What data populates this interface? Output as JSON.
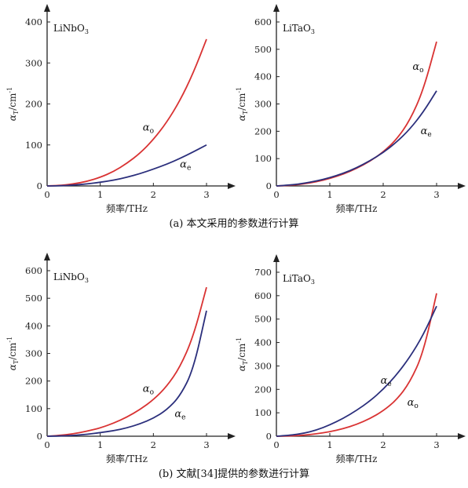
{
  "chart_data": [
    {
      "type": "line",
      "label": "LiNbO3",
      "xlabel": "频率/THz",
      "ylabel": "αT/cm-1",
      "xlim": [
        0,
        3.3
      ],
      "ylim": [
        0,
        420
      ],
      "xticks": [
        0,
        1,
        2,
        3
      ],
      "yticks": [
        0,
        100,
        200,
        300,
        400
      ],
      "series": [
        {
          "name": "αo",
          "color": "#d93333",
          "x": [
            0,
            0.25,
            0.5,
            0.75,
            1,
            1.25,
            1.5,
            1.75,
            2,
            2.25,
            2.5,
            2.75,
            3
          ],
          "y": [
            0,
            1,
            5,
            11,
            21,
            35,
            55,
            80,
            113,
            155,
            208,
            275,
            358
          ]
        },
        {
          "name": "αe",
          "color": "#2b2f7c",
          "x": [
            0,
            0.25,
            0.5,
            0.75,
            1,
            1.25,
            1.5,
            1.75,
            2,
            2.25,
            2.5,
            2.75,
            3
          ],
          "y": [
            0,
            0.5,
            2,
            5,
            9,
            14,
            21,
            30,
            41,
            53,
            67,
            83,
            100
          ]
        }
      ],
      "annotations": [
        {
          "series": "αo",
          "x": 1.8,
          "y": 135
        },
        {
          "series": "αe",
          "x": 2.5,
          "y": 45
        }
      ]
    },
    {
      "type": "line",
      "label": "LiTaO3",
      "xlabel": "频率/THz",
      "ylabel": "αT/cm-1",
      "xlim": [
        0,
        3.3
      ],
      "ylim": [
        0,
        630
      ],
      "xticks": [
        0,
        1,
        2,
        3
      ],
      "yticks": [
        0,
        100,
        200,
        300,
        400,
        500,
        600
      ],
      "series": [
        {
          "name": "αo",
          "color": "#d93333",
          "x": [
            0,
            0.25,
            0.5,
            0.75,
            1,
            1.25,
            1.5,
            1.75,
            2,
            2.25,
            2.5,
            2.75,
            3
          ],
          "y": [
            0,
            2,
            7,
            15,
            27,
            43,
            64,
            90,
            124,
            170,
            240,
            350,
            528
          ]
        },
        {
          "name": "αe",
          "color": "#2b2f7c",
          "x": [
            0,
            0.25,
            0.5,
            0.75,
            1,
            1.25,
            1.5,
            1.75,
            2,
            2.25,
            2.5,
            2.75,
            3
          ],
          "y": [
            0,
            3,
            9,
            18,
            30,
            46,
            66,
            92,
            122,
            160,
            208,
            270,
            348
          ]
        }
      ],
      "annotations": [
        {
          "series": "αo",
          "x": 2.55,
          "y": 425
        },
        {
          "series": "αe",
          "x": 2.7,
          "y": 190
        }
      ]
    },
    {
      "type": "line",
      "label": "LiNbO3",
      "xlabel": "频率/THz",
      "ylabel": "αT/cm-1",
      "xlim": [
        0,
        3.3
      ],
      "ylim": [
        0,
        640
      ],
      "xticks": [
        0,
        1,
        2,
        3
      ],
      "yticks": [
        0,
        100,
        200,
        300,
        400,
        500,
        600
      ],
      "series": [
        {
          "name": "αo",
          "color": "#d93333",
          "x": [
            0,
            0.25,
            0.5,
            0.75,
            1,
            1.25,
            1.5,
            1.75,
            2,
            2.25,
            2.5,
            2.75,
            3
          ],
          "y": [
            0,
            3,
            9,
            18,
            30,
            47,
            69,
            97,
            132,
            180,
            250,
            360,
            540
          ]
        },
        {
          "name": "αe",
          "color": "#2b2f7c",
          "x": [
            0,
            0.25,
            0.5,
            0.75,
            1,
            1.25,
            1.5,
            1.75,
            2,
            2.25,
            2.5,
            2.75,
            3
          ],
          "y": [
            0,
            1,
            3,
            7,
            13,
            20,
            30,
            45,
            65,
            95,
            145,
            240,
            455
          ]
        }
      ],
      "annotations": [
        {
          "series": "αo",
          "x": 1.8,
          "y": 160
        },
        {
          "series": "αe",
          "x": 2.4,
          "y": 70
        }
      ]
    },
    {
      "type": "line",
      "label": "LiTaO3",
      "xlabel": "频率/THz",
      "ylabel": "αT/cm-1",
      "xlim": [
        0,
        3.3
      ],
      "ylim": [
        0,
        750
      ],
      "xticks": [
        0,
        1,
        2,
        3
      ],
      "yticks": [
        0,
        100,
        200,
        300,
        400,
        500,
        600,
        700
      ],
      "series": [
        {
          "name": "αo",
          "color": "#d93333",
          "x": [
            0,
            0.25,
            0.5,
            0.75,
            1,
            1.25,
            1.5,
            1.75,
            2,
            2.25,
            2.5,
            2.75,
            3
          ],
          "y": [
            0,
            1,
            4,
            10,
            19,
            32,
            50,
            75,
            108,
            155,
            230,
            355,
            610
          ]
        },
        {
          "name": "αe",
          "color": "#2b2f7c",
          "x": [
            0,
            0.25,
            0.5,
            0.75,
            1,
            1.25,
            1.5,
            1.75,
            2,
            2.25,
            2.5,
            2.75,
            3
          ],
          "y": [
            0,
            4,
            12,
            26,
            48,
            76,
            110,
            150,
            200,
            262,
            338,
            432,
            555
          ]
        }
      ],
      "annotations": [
        {
          "series": "αe",
          "x": 1.95,
          "y": 225
        },
        {
          "series": "αo",
          "x": 2.45,
          "y": 130
        }
      ]
    }
  ],
  "captions": [
    "(a) 本文采用的参数进行计算",
    "(b) 文献[34]提供的参数进行计算"
  ]
}
